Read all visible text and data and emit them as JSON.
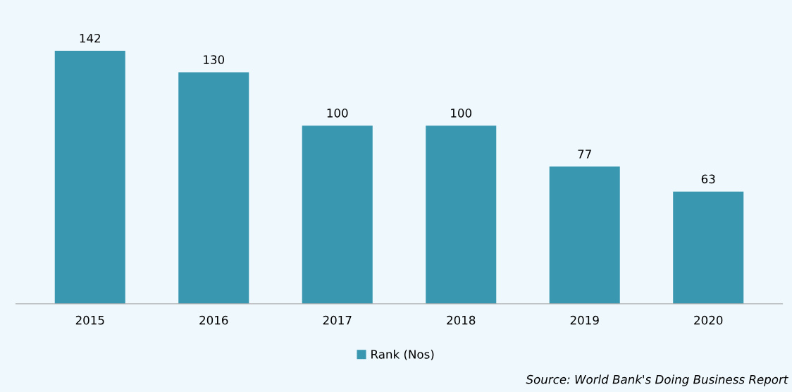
{
  "chart_data": {
    "type": "bar",
    "categories": [
      "2015",
      "2016",
      "2017",
      "2018",
      "2019",
      "2020"
    ],
    "series": [
      {
        "name": "Rank (Nos)",
        "color": "#3a97b0",
        "values": [
          142,
          130,
          100,
          100,
          77,
          63
        ]
      }
    ],
    "data_labels": true,
    "legend": "bottom",
    "grid": false,
    "tick_labels": "x",
    "annotations": [
      "Source: World Bank's Doing Business Report"
    ]
  }
}
